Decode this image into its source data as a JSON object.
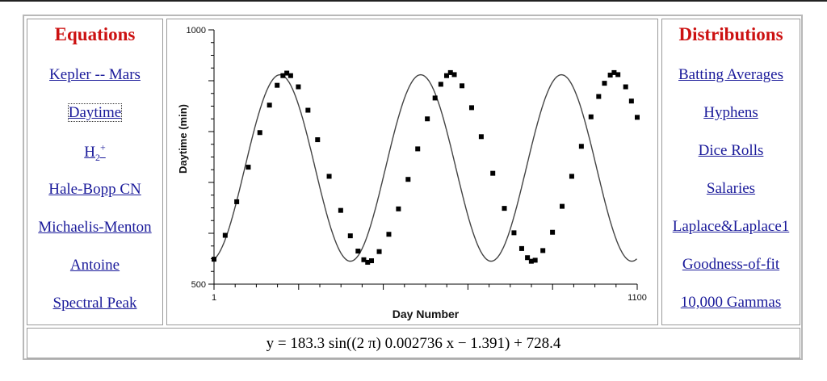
{
  "left_panel": {
    "heading": "Equations",
    "links": [
      {
        "label": "Kepler -- Mars"
      },
      {
        "label": "Daytime"
      },
      {
        "label": "H",
        "sub": "2",
        "sup": "+"
      },
      {
        "label": "Hale-Bopp CN"
      },
      {
        "label": "Michaelis-Menton"
      },
      {
        "label": "Antoine"
      },
      {
        "label": "Spectral Peak"
      }
    ]
  },
  "right_panel": {
    "heading": "Distributions",
    "links": [
      {
        "label": "Batting Averages"
      },
      {
        "label": "Hyphens"
      },
      {
        "label": "Dice Rolls"
      },
      {
        "label": "Salaries"
      },
      {
        "label": "Laplace&Laplace1"
      },
      {
        "label": "Goodness-of-fit"
      },
      {
        "label": "10,000 Gammas"
      }
    ]
  },
  "equation": "y = 183.3 sin((2 π) 0.002736 x − 1.391) + 728.4",
  "chart_data": {
    "type": "scatter",
    "xlabel": "Day Number",
    "ylabel": "Daytime (min)",
    "xlim": [
      1,
      1100
    ],
    "ylim": [
      500,
      1000
    ],
    "x_tick_labels": [
      "1",
      "1100"
    ],
    "y_tick_labels": [
      "500",
      "1000"
    ],
    "fit_curve": {
      "amplitude": 183.3,
      "frequency": 0.002736,
      "phase": 1.391,
      "offset": 728.4
    },
    "series": [
      {
        "points": [
          [
            1,
            549
          ],
          [
            30,
            596
          ],
          [
            60,
            662
          ],
          [
            90,
            730
          ],
          [
            120,
            798
          ],
          [
            145,
            852
          ],
          [
            165,
            891
          ],
          [
            180,
            910
          ],
          [
            190,
            915
          ],
          [
            200,
            910
          ],
          [
            220,
            888
          ],
          [
            245,
            842
          ],
          [
            270,
            784
          ],
          [
            300,
            712
          ],
          [
            330,
            645
          ],
          [
            355,
            595
          ],
          [
            375,
            565
          ],
          [
            390,
            548
          ],
          [
            400,
            543
          ],
          [
            410,
            546
          ],
          [
            430,
            564
          ],
          [
            455,
            598
          ],
          [
            480,
            648
          ],
          [
            505,
            706
          ],
          [
            530,
            766
          ],
          [
            555,
            825
          ],
          [
            575,
            866
          ],
          [
            590,
            893
          ],
          [
            605,
            910
          ],
          [
            615,
            916
          ],
          [
            625,
            912
          ],
          [
            645,
            890
          ],
          [
            670,
            847
          ],
          [
            695,
            790
          ],
          [
            725,
            718
          ],
          [
            755,
            649
          ],
          [
            780,
            601
          ],
          [
            800,
            570
          ],
          [
            815,
            552
          ],
          [
            825,
            545
          ],
          [
            835,
            547
          ],
          [
            855,
            566
          ],
          [
            880,
            602
          ],
          [
            905,
            653
          ],
          [
            930,
            712
          ],
          [
            955,
            771
          ],
          [
            980,
            829
          ],
          [
            1000,
            869
          ],
          [
            1015,
            895
          ],
          [
            1030,
            911
          ],
          [
            1040,
            916
          ],
          [
            1050,
            912
          ],
          [
            1070,
            888
          ],
          [
            1085,
            860
          ],
          [
            1100,
            828
          ]
        ]
      }
    ]
  }
}
